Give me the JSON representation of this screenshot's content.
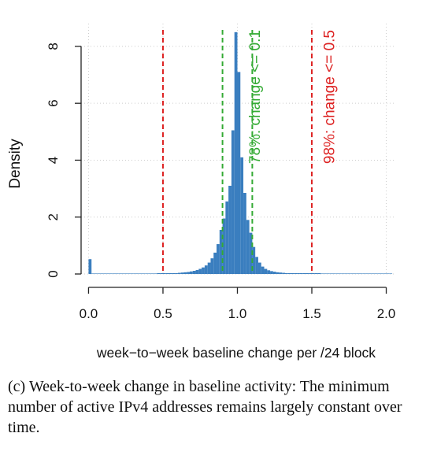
{
  "chart_data": {
    "type": "bar",
    "title": "",
    "xlabel": "week−to−week baseline change per /24 block",
    "ylabel": "Density",
    "xlim": [
      -0.05,
      2.05
    ],
    "ylim": [
      0,
      8.8
    ],
    "xticks": [
      "0.0",
      "0.5",
      "1.0",
      "1.5",
      "2.0"
    ],
    "yticks": [
      "0",
      "2",
      "4",
      "6",
      "8"
    ],
    "grid": true,
    "bar_color": "#3a7ebf",
    "bin_width": 0.02,
    "x": [
      0.0,
      0.02,
      0.04,
      0.06,
      0.08,
      0.1,
      0.12,
      0.14,
      0.16,
      0.18,
      0.2,
      0.22,
      0.24,
      0.26,
      0.28,
      0.3,
      0.32,
      0.34,
      0.36,
      0.38,
      0.4,
      0.42,
      0.44,
      0.46,
      0.48,
      0.5,
      0.52,
      0.54,
      0.56,
      0.58,
      0.6,
      0.62,
      0.64,
      0.66,
      0.68,
      0.7,
      0.72,
      0.74,
      0.76,
      0.78,
      0.8,
      0.82,
      0.84,
      0.86,
      0.88,
      0.9,
      0.92,
      0.94,
      0.96,
      0.98,
      1.0,
      1.02,
      1.04,
      1.06,
      1.08,
      1.1,
      1.12,
      1.14,
      1.16,
      1.18,
      1.2,
      1.22,
      1.24,
      1.26,
      1.28,
      1.3,
      1.32,
      1.34,
      1.36,
      1.38,
      1.4,
      1.42,
      1.44,
      1.46,
      1.48,
      1.5,
      1.52,
      1.54,
      1.56,
      1.58,
      1.6,
      1.62,
      1.64,
      1.66,
      1.68,
      1.7,
      1.72,
      1.74,
      1.76,
      1.78,
      1.8,
      1.82,
      1.84,
      1.86,
      1.88,
      1.9,
      1.92,
      1.94,
      1.96,
      1.98,
      2.0,
      2.02
    ],
    "values": [
      0.52,
      0.0,
      0.0,
      0.0,
      0.0,
      0.0,
      0.0,
      0.0,
      0.0,
      0.0,
      0.0,
      0.0,
      0.0,
      0.0,
      0.0,
      0.0,
      0.0,
      0.0,
      0.0,
      0.0,
      0.0,
      0.0,
      0.0,
      0.01,
      0.01,
      0.01,
      0.02,
      0.02,
      0.03,
      0.03,
      0.04,
      0.05,
      0.06,
      0.07,
      0.09,
      0.11,
      0.14,
      0.18,
      0.23,
      0.3,
      0.4,
      0.55,
      0.75,
      1.05,
      1.55,
      1.95,
      2.55,
      3.1,
      5.05,
      8.5,
      7.1,
      4.1,
      2.85,
      1.9,
      1.45,
      0.95,
      0.6,
      0.4,
      0.26,
      0.18,
      0.13,
      0.1,
      0.08,
      0.06,
      0.05,
      0.04,
      0.03,
      0.03,
      0.02,
      0.02,
      0.02,
      0.01,
      0.01,
      0.01,
      0.01,
      0.01,
      0.01,
      0.01,
      0.0,
      0.0,
      0.0,
      0.0,
      0.0,
      0.0,
      0.0,
      0.0,
      0.0,
      0.0,
      0.0,
      0.0,
      0.0,
      0.0,
      0.0,
      0.0,
      0.0,
      0.0,
      0.0,
      0.0,
      0.0,
      0.0,
      0.0,
      0.0
    ],
    "vlines": [
      {
        "x": 0.9,
        "color": "#33aa33"
      },
      {
        "x": 1.1,
        "color": "#33aa33"
      },
      {
        "x": 0.5,
        "color": "#dd2222"
      },
      {
        "x": 1.5,
        "color": "#dd2222"
      }
    ],
    "annotations": [
      {
        "text": "78%: change <= 0.1",
        "x": 1.15,
        "color": "#33aa33"
      },
      {
        "text": "98%: change <= 0.5",
        "x": 1.65,
        "color": "#dd2222"
      }
    ]
  },
  "caption": "(c) Week-to-week change in baseline activity: The minimum number of active IPv4 addresses remains largely constant over time."
}
